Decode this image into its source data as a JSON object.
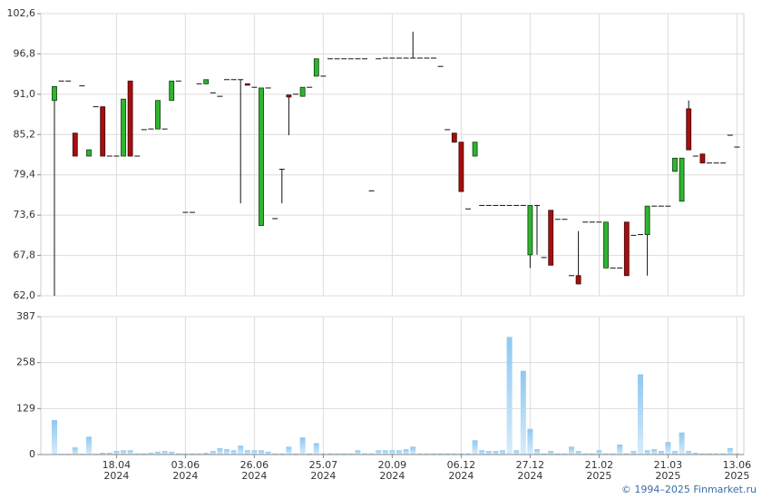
{
  "chart_data": [
    {
      "type": "candlestick",
      "open": [
        90.1,
        92.9,
        92.9,
        85.4,
        92.2,
        82.1,
        89.2,
        89.2,
        82.1,
        82.1,
        82.1,
        92.9,
        82.1,
        85.9,
        86.0,
        86.0,
        86.0,
        90.1,
        92.9,
        74.0,
        74.0,
        92.5,
        92.5,
        91.2,
        90.7,
        93.1,
        93.1,
        93.1,
        92.5,
        92.0,
        72.1,
        91.9,
        73.1,
        80.2,
        90.9,
        91.0,
        90.7,
        92.0,
        93.6,
        93.6,
        96.1,
        96.1,
        96.1,
        96.1,
        96.1,
        96.1,
        77.1,
        96.1,
        96.2,
        96.2,
        96.2,
        96.2,
        96.2,
        96.2,
        96.2,
        96.2,
        95.0,
        85.9,
        85.4,
        84.1,
        74.5,
        82.1,
        75.0,
        75.0,
        75.0,
        75.0,
        75.0,
        75.0,
        75.0,
        67.9,
        75.0,
        67.5,
        74.3,
        73.0,
        73.0,
        64.9,
        64.9,
        72.6,
        72.6,
        72.6,
        66.0,
        66.0,
        66.0,
        72.6,
        70.7,
        70.8,
        70.8,
        74.9,
        74.9,
        74.9,
        79.9,
        75.6,
        88.9,
        82.1,
        82.4,
        81.1,
        81.1,
        81.1,
        85.1,
        83.4
      ],
      "high": [
        92.1,
        92.9,
        92.9,
        85.4,
        92.2,
        83.0,
        89.2,
        89.2,
        82.1,
        82.1,
        90.3,
        92.9,
        82.1,
        85.9,
        86.0,
        90.1,
        86.0,
        92.9,
        92.9,
        74.0,
        74.0,
        92.5,
        93.1,
        91.2,
        90.7,
        93.1,
        93.1,
        93.1,
        92.5,
        92.0,
        91.9,
        91.9,
        73.1,
        80.2,
        90.9,
        91.0,
        92.0,
        92.0,
        96.1,
        93.6,
        96.1,
        96.1,
        96.1,
        96.1,
        96.1,
        96.1,
        77.1,
        96.1,
        96.2,
        96.2,
        96.2,
        96.2,
        100.0,
        96.2,
        96.2,
        96.2,
        95.0,
        85.9,
        85.4,
        84.1,
        74.5,
        84.1,
        75.0,
        75.0,
        75.0,
        75.0,
        75.0,
        75.0,
        75.0,
        75.0,
        75.0,
        67.5,
        74.3,
        73.0,
        73.0,
        64.9,
        71.3,
        72.6,
        72.6,
        72.6,
        72.6,
        66.0,
        66.0,
        72.6,
        70.7,
        70.8,
        74.9,
        74.9,
        74.9,
        74.9,
        81.8,
        81.8,
        90.1,
        82.1,
        82.4,
        81.1,
        81.1,
        81.1,
        85.1,
        83.4
      ],
      "low": [
        62.0,
        92.9,
        92.9,
        82.1,
        92.2,
        82.1,
        89.2,
        82.1,
        82.1,
        82.1,
        82.1,
        82.1,
        82.1,
        85.9,
        86.0,
        86.0,
        86.0,
        90.1,
        92.9,
        74.0,
        74.0,
        92.5,
        92.5,
        91.2,
        90.7,
        93.1,
        93.1,
        75.3,
        92.3,
        92.0,
        72.1,
        91.9,
        73.1,
        75.3,
        85.1,
        91.0,
        90.7,
        92.0,
        93.6,
        93.6,
        96.1,
        96.1,
        96.1,
        96.1,
        96.1,
        96.1,
        77.1,
        96.1,
        96.2,
        96.2,
        96.2,
        96.2,
        96.2,
        96.2,
        96.2,
        96.2,
        95.0,
        85.9,
        84.1,
        77.0,
        74.5,
        82.1,
        75.0,
        75.0,
        75.0,
        75.0,
        75.0,
        75.0,
        75.0,
        66.0,
        67.9,
        67.5,
        66.4,
        73.0,
        73.0,
        64.9,
        63.7,
        72.6,
        72.6,
        72.6,
        66.0,
        66.0,
        66.0,
        64.9,
        70.7,
        70.8,
        64.9,
        74.9,
        74.9,
        74.9,
        79.9,
        75.6,
        83.0,
        82.1,
        81.1,
        81.1,
        81.1,
        81.1,
        85.1,
        83.4
      ],
      "close": [
        92.1,
        92.9,
        92.9,
        82.1,
        92.2,
        83.0,
        89.2,
        82.1,
        82.1,
        82.1,
        90.3,
        82.1,
        82.1,
        85.9,
        86.0,
        90.1,
        86.0,
        92.9,
        92.9,
        74.0,
        74.0,
        92.5,
        93.1,
        91.2,
        90.7,
        93.1,
        93.1,
        93.1,
        92.3,
        92.0,
        91.9,
        91.9,
        73.1,
        80.2,
        90.6,
        91.0,
        92.0,
        92.0,
        96.1,
        93.6,
        96.1,
        96.1,
        96.1,
        96.1,
        96.1,
        96.1,
        77.1,
        96.1,
        96.2,
        96.2,
        96.2,
        96.2,
        96.2,
        96.2,
        96.2,
        96.2,
        95.0,
        85.9,
        84.1,
        77.0,
        74.5,
        84.1,
        75.0,
        75.0,
        75.0,
        75.0,
        75.0,
        75.0,
        75.0,
        75.0,
        75.0,
        67.5,
        66.4,
        73.0,
        73.0,
        64.9,
        63.7,
        72.6,
        72.6,
        72.6,
        72.6,
        66.0,
        66.0,
        64.9,
        70.7,
        70.8,
        74.9,
        74.9,
        74.9,
        74.9,
        81.8,
        81.8,
        83.0,
        82.1,
        81.1,
        81.1,
        81.1,
        81.1,
        85.1,
        83.4
      ],
      "up_color": "#2fb52f",
      "down_color": "#a80d0d",
      "ylim": [
        62.0,
        102.6
      ],
      "yticks": [
        {
          "value": 62.0,
          "label": "62,0"
        },
        {
          "value": 67.8,
          "label": "67,8"
        },
        {
          "value": 73.6,
          "label": "73,6"
        },
        {
          "value": 79.4,
          "label": "79,4"
        },
        {
          "value": 85.2,
          "label": "85,2"
        },
        {
          "value": 91.0,
          "label": "91,0"
        },
        {
          "value": 96.8,
          "label": "96,8"
        },
        {
          "value": 102.6,
          "label": "102,6"
        }
      ],
      "grid": true
    },
    {
      "type": "bar",
      "categories": [
        null,
        null,
        null,
        null,
        null,
        null,
        null,
        null,
        null,
        "18.04\n2024",
        null,
        null,
        null,
        null,
        null,
        null,
        null,
        null,
        null,
        "03.06\n2024",
        null,
        null,
        null,
        null,
        null,
        null,
        null,
        null,
        null,
        "26.06\n2024",
        null,
        null,
        null,
        null,
        null,
        null,
        null,
        null,
        null,
        "25.07\n2024",
        null,
        null,
        null,
        null,
        null,
        null,
        null,
        null,
        null,
        "20.09\n2024",
        null,
        null,
        null,
        null,
        null,
        null,
        null,
        null,
        null,
        "06.12\n2024",
        null,
        null,
        null,
        null,
        null,
        null,
        null,
        null,
        null,
        "27.12\n2024",
        null,
        null,
        null,
        null,
        null,
        null,
        null,
        null,
        null,
        "21.02\n2025",
        null,
        null,
        null,
        null,
        null,
        null,
        null,
        null,
        null,
        "21.03\n2025",
        null,
        null,
        null,
        null,
        null,
        null,
        null,
        null,
        null,
        "13.06\n2025"
      ],
      "values": [
        97,
        2,
        2,
        20,
        2,
        50,
        2,
        5,
        5,
        10,
        12,
        12,
        3,
        3,
        5,
        8,
        10,
        8,
        3,
        3,
        3,
        3,
        5,
        10,
        18,
        15,
        12,
        25,
        12,
        12,
        12,
        8,
        3,
        3,
        22,
        3,
        48,
        3,
        32,
        3,
        3,
        3,
        3,
        3,
        12,
        3,
        3,
        12,
        12,
        12,
        12,
        15,
        22,
        3,
        3,
        3,
        3,
        3,
        3,
        3,
        3,
        40,
        12,
        10,
        10,
        12,
        330,
        12,
        235,
        72,
        15,
        3,
        10,
        3,
        3,
        22,
        10,
        3,
        3,
        12,
        3,
        3,
        28,
        3,
        10,
        225,
        12,
        15,
        10,
        35,
        10,
        62,
        10,
        5,
        3,
        3,
        3,
        3,
        18,
        3
      ],
      "color": "#8fc8f0",
      "ylim": [
        0,
        387
      ],
      "yticks": [
        0,
        129,
        258,
        387
      ],
      "grid": true
    }
  ],
  "footer": "© 1994–2025 Finmarket.ru"
}
